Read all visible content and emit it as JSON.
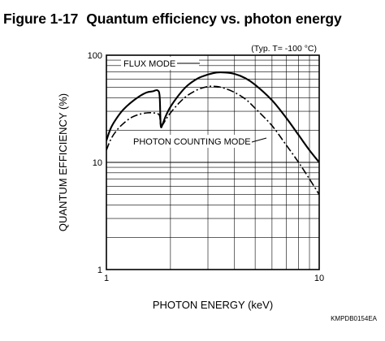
{
  "figure": {
    "number": "Figure 1-17",
    "title": "Quantum efficiency vs. photon energy",
    "condition_note": "(Typ. T= -100 °C)",
    "code": "KMPDB0154EA"
  },
  "chart_data": {
    "type": "line",
    "title": "Quantum efficiency vs. photon energy",
    "xlabel": "PHOTON ENERGY (keV)",
    "ylabel": "QUANTUM EFFICIENCY (%)",
    "xscale": "log",
    "yscale": "log",
    "xlim": [
      1,
      10
    ],
    "ylim": [
      1,
      100
    ],
    "x_ticks": [
      "1",
      "10"
    ],
    "y_ticks": [
      "1",
      "10",
      "100"
    ],
    "grid": true,
    "series": [
      {
        "name": "FLUX MODE",
        "style": "solid",
        "color": "#000000",
        "x": [
          1.0,
          1.05,
          1.12,
          1.2,
          1.3,
          1.42,
          1.55,
          1.65,
          1.74,
          1.78,
          1.8,
          1.84,
          1.9,
          2.0,
          2.2,
          2.4,
          2.7,
          3.0,
          3.3,
          3.6,
          4.0,
          4.5,
          5.0,
          6.0,
          7.0,
          8.0,
          9.0,
          10.0
        ],
        "y": [
          16,
          21,
          26,
          31,
          36,
          41,
          45,
          46,
          47,
          41,
          22,
          23,
          27,
          33,
          43,
          52,
          61,
          66,
          69,
          69,
          67,
          61,
          53,
          38,
          26,
          18,
          13,
          10
        ]
      },
      {
        "name": "PHOTON COUNTING MODE",
        "style": "dash-dot",
        "color": "#000000",
        "x": [
          1.0,
          1.05,
          1.12,
          1.2,
          1.3,
          1.42,
          1.55,
          1.65,
          1.74,
          1.78,
          1.8,
          1.84,
          1.9,
          2.0,
          2.2,
          2.4,
          2.7,
          3.0,
          3.3,
          3.6,
          4.0,
          4.5,
          5.0,
          6.0,
          7.0,
          8.0,
          9.0,
          10.0
        ],
        "y": [
          13,
          16.5,
          20,
          23,
          26,
          28,
          29,
          29,
          28.5,
          27,
          22,
          22.5,
          25,
          29,
          36,
          42,
          48,
          51,
          51,
          49,
          45,
          39,
          32,
          22,
          14.5,
          10,
          7,
          5
        ]
      }
    ],
    "annotations": [
      {
        "text": "FLUX MODE",
        "series": 0
      },
      {
        "text": "PHOTON COUNTING MODE",
        "series": 1
      }
    ]
  }
}
